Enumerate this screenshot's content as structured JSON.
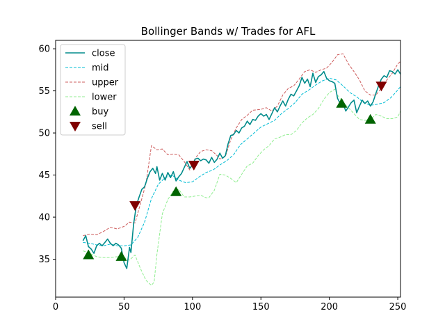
{
  "chart_data": {
    "type": "line",
    "title": "Bollinger Bands w/ Trades for AFL",
    "xlabel": "",
    "ylabel": "",
    "xlim": [
      0,
      252
    ],
    "ylim": [
      30.5,
      61
    ],
    "x_ticks": [
      0,
      50,
      100,
      150,
      200,
      250
    ],
    "y_ticks": [
      35,
      40,
      45,
      50,
      55,
      60
    ],
    "grid": false,
    "legend_position": "top-left",
    "series": [
      {
        "name": "close",
        "color": "#008b8b",
        "style": "solid",
        "points": [
          [
            20,
            37.2
          ],
          [
            22,
            37.8
          ],
          [
            24,
            36.5
          ],
          [
            26,
            36.2
          ],
          [
            28,
            35.7
          ],
          [
            30,
            36.6
          ],
          [
            32,
            36.9
          ],
          [
            34,
            36.6
          ],
          [
            36,
            37.0
          ],
          [
            38,
            37.4
          ],
          [
            40,
            36.9
          ],
          [
            42,
            36.6
          ],
          [
            44,
            36.9
          ],
          [
            46,
            36.7
          ],
          [
            48,
            36.3
          ],
          [
            50,
            34.6
          ],
          [
            52,
            33.9
          ],
          [
            54,
            36.4
          ],
          [
            55,
            35.8
          ],
          [
            57,
            39.2
          ],
          [
            59,
            41.4
          ],
          [
            61,
            42.4
          ],
          [
            63,
            43.3
          ],
          [
            65,
            43.6
          ],
          [
            67,
            44.6
          ],
          [
            69,
            45.4
          ],
          [
            71,
            45.8
          ],
          [
            73,
            45.2
          ],
          [
            74,
            46.0
          ],
          [
            76,
            44.4
          ],
          [
            78,
            45.2
          ],
          [
            80,
            44.4
          ],
          [
            82,
            45.3
          ],
          [
            84,
            44.7
          ],
          [
            86,
            45.4
          ],
          [
            88,
            44.3
          ],
          [
            90,
            44.8
          ],
          [
            92,
            45.2
          ],
          [
            94,
            45.9
          ],
          [
            96,
            46.6
          ],
          [
            98,
            45.8
          ],
          [
            100,
            46.2
          ],
          [
            102,
            46.9
          ],
          [
            104,
            47.0
          ],
          [
            106,
            46.7
          ],
          [
            108,
            46.9
          ],
          [
            110,
            46.8
          ],
          [
            112,
            46.4
          ],
          [
            114,
            47.1
          ],
          [
            116,
            46.5
          ],
          [
            118,
            46.9
          ],
          [
            120,
            47.6
          ],
          [
            122,
            47.0
          ],
          [
            124,
            47.3
          ],
          [
            126,
            48.7
          ],
          [
            128,
            49.7
          ],
          [
            130,
            49.8
          ],
          [
            132,
            50.3
          ],
          [
            134,
            50.0
          ],
          [
            136,
            50.6
          ],
          [
            138,
            50.8
          ],
          [
            140,
            51.4
          ],
          [
            142,
            51.0
          ],
          [
            144,
            51.6
          ],
          [
            146,
            51.5
          ],
          [
            148,
            52.0
          ],
          [
            150,
            52.3
          ],
          [
            152,
            52.0
          ],
          [
            154,
            52.2
          ],
          [
            156,
            51.6
          ],
          [
            158,
            52.3
          ],
          [
            160,
            53.0
          ],
          [
            162,
            52.5
          ],
          [
            164,
            53.2
          ],
          [
            166,
            53.8
          ],
          [
            168,
            53.2
          ],
          [
            170,
            54.0
          ],
          [
            172,
            54.6
          ],
          [
            174,
            54.4
          ],
          [
            176,
            55.0
          ],
          [
            178,
            55.6
          ],
          [
            180,
            56.6
          ],
          [
            182,
            55.9
          ],
          [
            184,
            56.4
          ],
          [
            186,
            55.5
          ],
          [
            188,
            57.1
          ],
          [
            190,
            56.0
          ],
          [
            192,
            56.7
          ],
          [
            194,
            56.9
          ],
          [
            196,
            57.3
          ],
          [
            198,
            56.5
          ],
          [
            200,
            56.2
          ],
          [
            202,
            56.1
          ],
          [
            204,
            55.9
          ],
          [
            206,
            54.1
          ],
          [
            208,
            53.5
          ],
          [
            210,
            53.5
          ],
          [
            212,
            52.6
          ],
          [
            214,
            53.1
          ],
          [
            216,
            53.6
          ],
          [
            218,
            53.9
          ],
          [
            220,
            52.4
          ],
          [
            222,
            53.2
          ],
          [
            224,
            53.9
          ],
          [
            226,
            53.5
          ],
          [
            228,
            53.8
          ],
          [
            230,
            53.2
          ],
          [
            232,
            53.7
          ],
          [
            234,
            54.7
          ],
          [
            236,
            55.6
          ],
          [
            238,
            56.4
          ],
          [
            240,
            56.8
          ],
          [
            242,
            56.6
          ],
          [
            244,
            57.4
          ],
          [
            246,
            57.3
          ],
          [
            248,
            57.0
          ],
          [
            250,
            57.5
          ],
          [
            252,
            57.0
          ]
        ]
      },
      {
        "name": "mid",
        "color": "#00bcd4",
        "style": "dashed",
        "points": [
          [
            20,
            37.0
          ],
          [
            25,
            36.9
          ],
          [
            30,
            36.7
          ],
          [
            35,
            36.6
          ],
          [
            40,
            36.8
          ],
          [
            45,
            36.6
          ],
          [
            50,
            36.6
          ],
          [
            55,
            36.7
          ],
          [
            60,
            37.6
          ],
          [
            65,
            39.4
          ],
          [
            70,
            42.2
          ],
          [
            75,
            43.9
          ],
          [
            80,
            44.7
          ],
          [
            85,
            45.0
          ],
          [
            90,
            44.4
          ],
          [
            95,
            44.1
          ],
          [
            100,
            44.2
          ],
          [
            105,
            44.8
          ],
          [
            110,
            45.3
          ],
          [
            115,
            45.6
          ],
          [
            120,
            46.2
          ],
          [
            125,
            46.7
          ],
          [
            130,
            47.4
          ],
          [
            135,
            48.6
          ],
          [
            140,
            49.3
          ],
          [
            145,
            50.0
          ],
          [
            150,
            50.7
          ],
          [
            155,
            51.1
          ],
          [
            160,
            51.5
          ],
          [
            165,
            52.3
          ],
          [
            170,
            52.9
          ],
          [
            175,
            53.6
          ],
          [
            180,
            54.6
          ],
          [
            185,
            55.1
          ],
          [
            190,
            55.7
          ],
          [
            195,
            56.2
          ],
          [
            200,
            56.5
          ],
          [
            205,
            56.3
          ],
          [
            210,
            55.6
          ],
          [
            215,
            54.8
          ],
          [
            220,
            54.3
          ],
          [
            225,
            53.6
          ],
          [
            230,
            53.3
          ],
          [
            235,
            53.4
          ],
          [
            240,
            53.6
          ],
          [
            245,
            54.2
          ],
          [
            250,
            55.1
          ],
          [
            252,
            55.5
          ]
        ]
      },
      {
        "name": "upper",
        "color": "#cd5c5c",
        "style": "dashed",
        "points": [
          [
            20,
            37.8
          ],
          [
            25,
            38.0
          ],
          [
            30,
            37.9
          ],
          [
            35,
            38.3
          ],
          [
            40,
            38.8
          ],
          [
            45,
            38.6
          ],
          [
            50,
            38.9
          ],
          [
            54,
            39.4
          ],
          [
            58,
            39.3
          ],
          [
            62,
            41.6
          ],
          [
            66,
            44.0
          ],
          [
            70,
            48.5
          ],
          [
            74,
            48.0
          ],
          [
            78,
            48.1
          ],
          [
            82,
            47.4
          ],
          [
            86,
            47.5
          ],
          [
            90,
            47.4
          ],
          [
            94,
            46.6
          ],
          [
            98,
            45.6
          ],
          [
            102,
            47.0
          ],
          [
            106,
            47.8
          ],
          [
            110,
            48.0
          ],
          [
            114,
            47.9
          ],
          [
            118,
            47.3
          ],
          [
            120,
            46.9
          ],
          [
            124,
            47.2
          ],
          [
            128,
            49.2
          ],
          [
            132,
            50.6
          ],
          [
            136,
            51.6
          ],
          [
            140,
            52.1
          ],
          [
            144,
            52.7
          ],
          [
            150,
            52.8
          ],
          [
            154,
            53.0
          ],
          [
            158,
            52.6
          ],
          [
            162,
            53.2
          ],
          [
            166,
            54.5
          ],
          [
            170,
            55.3
          ],
          [
            174,
            55.6
          ],
          [
            178,
            56.4
          ],
          [
            182,
            57.3
          ],
          [
            186,
            57.5
          ],
          [
            190,
            57.2
          ],
          [
            194,
            57.5
          ],
          [
            198,
            57.7
          ],
          [
            202,
            58.4
          ],
          [
            206,
            59.3
          ],
          [
            210,
            59.4
          ],
          [
            214,
            58.2
          ],
          [
            218,
            57.3
          ],
          [
            222,
            56.3
          ],
          [
            226,
            55.0
          ],
          [
            230,
            54.5
          ],
          [
            234,
            54.5
          ],
          [
            238,
            55.3
          ],
          [
            242,
            56.3
          ],
          [
            246,
            57.1
          ],
          [
            250,
            58.2
          ],
          [
            252,
            58.5
          ]
        ]
      },
      {
        "name": "lower",
        "color": "#90ee90",
        "style": "dashed",
        "points": [
          [
            20,
            36.0
          ],
          [
            25,
            35.7
          ],
          [
            30,
            35.3
          ],
          [
            35,
            35.2
          ],
          [
            40,
            35.2
          ],
          [
            45,
            35.3
          ],
          [
            50,
            35.2
          ],
          [
            54,
            34.9
          ],
          [
            58,
            35.5
          ],
          [
            62,
            33.9
          ],
          [
            66,
            32.5
          ],
          [
            70,
            31.9
          ],
          [
            72,
            32.3
          ],
          [
            74,
            35.6
          ],
          [
            78,
            40.4
          ],
          [
            82,
            42.1
          ],
          [
            86,
            43.1
          ],
          [
            90,
            43.3
          ],
          [
            94,
            42.4
          ],
          [
            98,
            42.4
          ],
          [
            102,
            42.5
          ],
          [
            106,
            42.6
          ],
          [
            110,
            42.3
          ],
          [
            112,
            42.3
          ],
          [
            116,
            43.2
          ],
          [
            120,
            45.1
          ],
          [
            124,
            45.0
          ],
          [
            128,
            44.6
          ],
          [
            132,
            44.1
          ],
          [
            136,
            45.1
          ],
          [
            140,
            46.1
          ],
          [
            144,
            46.4
          ],
          [
            148,
            47.3
          ],
          [
            152,
            48.0
          ],
          [
            156,
            48.5
          ],
          [
            160,
            49.3
          ],
          [
            164,
            49.5
          ],
          [
            168,
            49.8
          ],
          [
            172,
            49.8
          ],
          [
            176,
            50.3
          ],
          [
            180,
            51.2
          ],
          [
            184,
            51.8
          ],
          [
            188,
            52.2
          ],
          [
            192,
            52.9
          ],
          [
            196,
            54.0
          ],
          [
            200,
            54.8
          ],
          [
            204,
            55.2
          ],
          [
            206,
            54.5
          ],
          [
            210,
            53.6
          ],
          [
            214,
            53.0
          ],
          [
            218,
            52.3
          ],
          [
            222,
            51.6
          ],
          [
            226,
            51.5
          ],
          [
            230,
            51.6
          ],
          [
            234,
            52.2
          ],
          [
            238,
            52.0
          ],
          [
            242,
            51.7
          ],
          [
            246,
            51.7
          ],
          [
            250,
            51.9
          ],
          [
            252,
            52.6
          ]
        ]
      }
    ],
    "buy": {
      "name": "buy",
      "color": "#006400",
      "points": [
        [
          24,
          35.5
        ],
        [
          48,
          35.3
        ],
        [
          88,
          43.0
        ],
        [
          209,
          53.5
        ],
        [
          230,
          51.6
        ]
      ]
    },
    "sell": {
      "name": "sell",
      "color": "#800000",
      "points": [
        [
          58,
          41.4
        ],
        [
          101,
          46.2
        ],
        [
          238,
          55.6
        ]
      ]
    }
  }
}
